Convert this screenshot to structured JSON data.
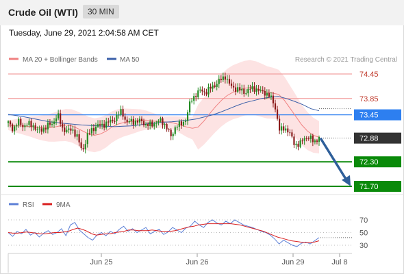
{
  "header": {
    "title": "Crude Oil (WTI)",
    "timeframe": "30 MIN"
  },
  "timestamp": "Tuesday, June 29, 2021 2:04:58 AM CET",
  "copyright": "Research © 2021 Trading Central",
  "colors": {
    "resistance": "#f2a0a0",
    "ma50": "#3a5fa8",
    "support": "#0a8a0a",
    "pivot": "#2d7ff0",
    "current": "#333333",
    "up_candle": "#228b22",
    "down_candle": "#8b1a1a",
    "bollinger": "#fde0e0",
    "forecast_arrow": "#2f5f9a",
    "rsi": "#5b7fd6",
    "rsi_ma": "#d91e1e"
  },
  "chart_data": [
    {
      "type": "line",
      "name": "price",
      "legend": [
        "MA 20 + Bollinger Bands",
        "MA 50"
      ],
      "x_ticks": [
        "Jun 25",
        "Jun 26",
        "Jun 29",
        "Jul 8"
      ],
      "levels": [
        {
          "value": 74.45,
          "label": "74.45",
          "kind": "resistance"
        },
        {
          "value": 73.85,
          "label": "73.85",
          "kind": "resistance"
        },
        {
          "value": 73.45,
          "label": "73.45",
          "kind": "pivot"
        },
        {
          "value": 72.88,
          "label": "72.88",
          "kind": "current"
        },
        {
          "value": 72.3,
          "label": "72.30",
          "kind": "support"
        },
        {
          "value": 71.7,
          "label": "71.70",
          "kind": "support"
        }
      ],
      "ylim": [
        71.7,
        74.45
      ],
      "price_path": [
        73.25,
        73.1,
        73.28,
        73.18,
        73.22,
        73.2,
        73.05,
        73.1,
        73.18,
        73.25,
        73.45,
        73.12,
        73.05,
        73.1,
        72.9,
        72.55,
        72.92,
        73.1,
        73.18,
        73.2,
        73.25,
        73.3,
        73.4,
        73.55,
        73.25,
        73.3,
        73.28,
        73.3,
        73.2,
        73.2,
        73.28,
        73.3,
        73.18,
        72.9,
        73.2,
        73.2,
        73.35,
        73.8,
        73.95,
        74.05,
        74.0,
        74.1,
        74.2,
        74.3,
        74.4,
        74.15,
        74.1,
        74.05,
        74.0,
        74.08,
        74.1,
        74.02,
        74.0,
        73.9,
        73.7,
        73.05,
        73.15,
        73.0,
        72.75,
        72.7,
        72.9,
        72.88,
        72.8,
        72.88
      ],
      "ma20": [
        73.2,
        73.18,
        73.18,
        73.17,
        73.16,
        73.14,
        73.13,
        73.13,
        73.15,
        73.18,
        73.2,
        73.18,
        73.12,
        73.05,
        72.98,
        72.95,
        72.98,
        73.05,
        73.15,
        73.22,
        73.26,
        73.28,
        73.3,
        73.32,
        73.32,
        73.3,
        73.29,
        73.28,
        73.27,
        73.24,
        73.2,
        73.15,
        73.12,
        73.15,
        73.3,
        73.48,
        73.65,
        73.8,
        73.92,
        74.0,
        74.05,
        74.1,
        74.12,
        74.1,
        74.05,
        74.0,
        73.98,
        73.95,
        73.8,
        73.6,
        73.4,
        73.2,
        73.05,
        72.95,
        72.9
      ],
      "ma50": [
        73.46,
        73.43,
        73.4,
        73.36,
        73.32,
        73.28,
        73.26,
        73.24,
        73.22,
        73.2,
        73.19,
        73.18,
        73.17,
        73.16,
        73.17,
        73.18,
        73.2,
        73.23,
        73.25,
        73.27,
        73.28,
        73.3,
        73.32,
        73.35,
        73.4,
        73.45,
        73.52,
        73.6,
        73.68,
        73.75,
        73.8,
        73.85,
        73.88,
        73.9,
        73.85,
        73.78,
        73.7,
        73.6,
        73.55
      ]
    },
    {
      "type": "line",
      "name": "rsi",
      "legend": [
        "RSI",
        "9MA"
      ],
      "y_ticks": [
        "70",
        "50",
        "30"
      ],
      "ylim": [
        20,
        80
      ],
      "rsi": [
        50,
        44,
        52,
        48,
        55,
        46,
        50,
        43,
        49,
        53,
        47,
        50,
        56,
        45,
        62,
        66,
        54,
        48,
        42,
        38,
        46,
        50,
        45,
        52,
        48,
        55,
        60,
        52,
        56,
        50,
        54,
        58,
        48,
        52,
        55,
        47,
        51,
        58,
        54,
        50,
        57,
        60,
        68,
        62,
        58,
        66,
        70,
        65,
        62,
        68,
        64,
        70,
        66,
        62,
        60,
        58,
        55,
        52,
        50,
        46,
        40,
        32,
        38,
        34,
        30,
        28,
        33,
        35,
        32,
        37,
        42
      ],
      "rsi_ma": [
        50,
        49,
        49,
        50,
        51,
        50,
        49,
        48,
        48,
        49,
        50,
        50,
        51,
        52,
        55,
        57,
        55,
        52,
        48,
        46,
        47,
        48,
        48,
        50,
        51,
        52,
        54,
        54,
        53,
        53,
        53,
        54,
        53,
        52,
        52,
        52,
        53,
        55,
        57,
        59,
        60,
        62,
        63,
        64,
        64,
        64,
        64,
        64,
        64,
        63,
        62,
        60,
        58,
        56,
        54,
        52,
        49,
        46,
        43,
        41,
        39,
        37,
        36,
        35,
        34,
        34,
        35,
        37
      ]
    }
  ]
}
